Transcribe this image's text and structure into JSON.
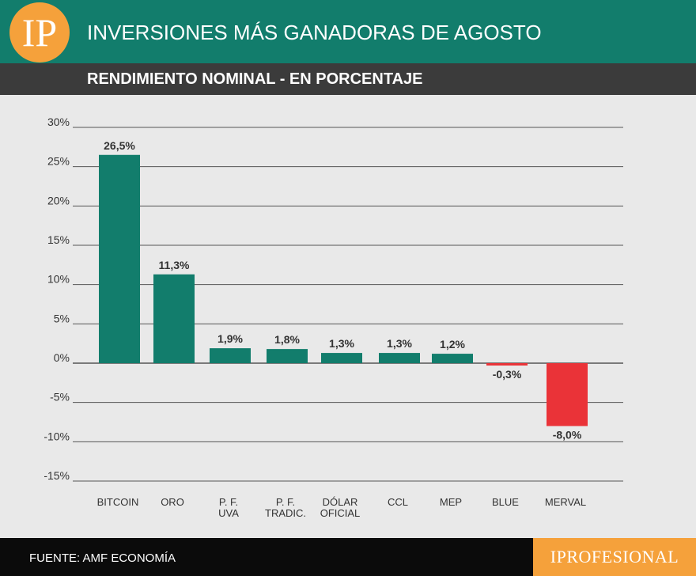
{
  "header": {
    "logo_text": "IP",
    "title": "INVERSIONES MÁS GANADORAS DE AGOSTO",
    "subtitle": "RENDIMIENTO NOMINAL - EN PORCENTAJE"
  },
  "footer": {
    "source": "FUENTE: AMF ECONOMÍA",
    "brand": "IPROFESIONAL"
  },
  "colors": {
    "positive": "#127d6c",
    "negative": "#ea3338",
    "header_bg": "#127d6c",
    "subheader_bg": "#3b3b3b",
    "accent": "#f5a13b"
  },
  "chart_data": {
    "type": "bar",
    "categories": [
      [
        "BITCOIN"
      ],
      [
        "ORO"
      ],
      [
        "P. F.",
        "UVA"
      ],
      [
        "P. F.",
        "TRADIC."
      ],
      [
        "DÓLAR",
        "OFICIAL"
      ],
      [
        "CCL"
      ],
      [
        "MEP"
      ],
      [
        "BLUE"
      ],
      [
        "MERVAL"
      ]
    ],
    "values": [
      26.5,
      11.3,
      1.9,
      1.8,
      1.3,
      1.3,
      1.2,
      -0.3,
      -8.0
    ],
    "value_labels": [
      "26,5%",
      "11,3%",
      "1,9%",
      "1,8%",
      "1,3%",
      "1,3%",
      "1,2%",
      "-0,3%",
      "-8,0%"
    ],
    "y_ticks": [
      30,
      25,
      20,
      15,
      10,
      5,
      0,
      -5,
      -10,
      -15
    ],
    "y_tick_labels": [
      "30%",
      "25%",
      "20%",
      "15%",
      "10%",
      "5%",
      "0%",
      "-5%",
      "-10%",
      "-15%"
    ],
    "ylim": [
      -15,
      30
    ],
    "grid": true
  }
}
